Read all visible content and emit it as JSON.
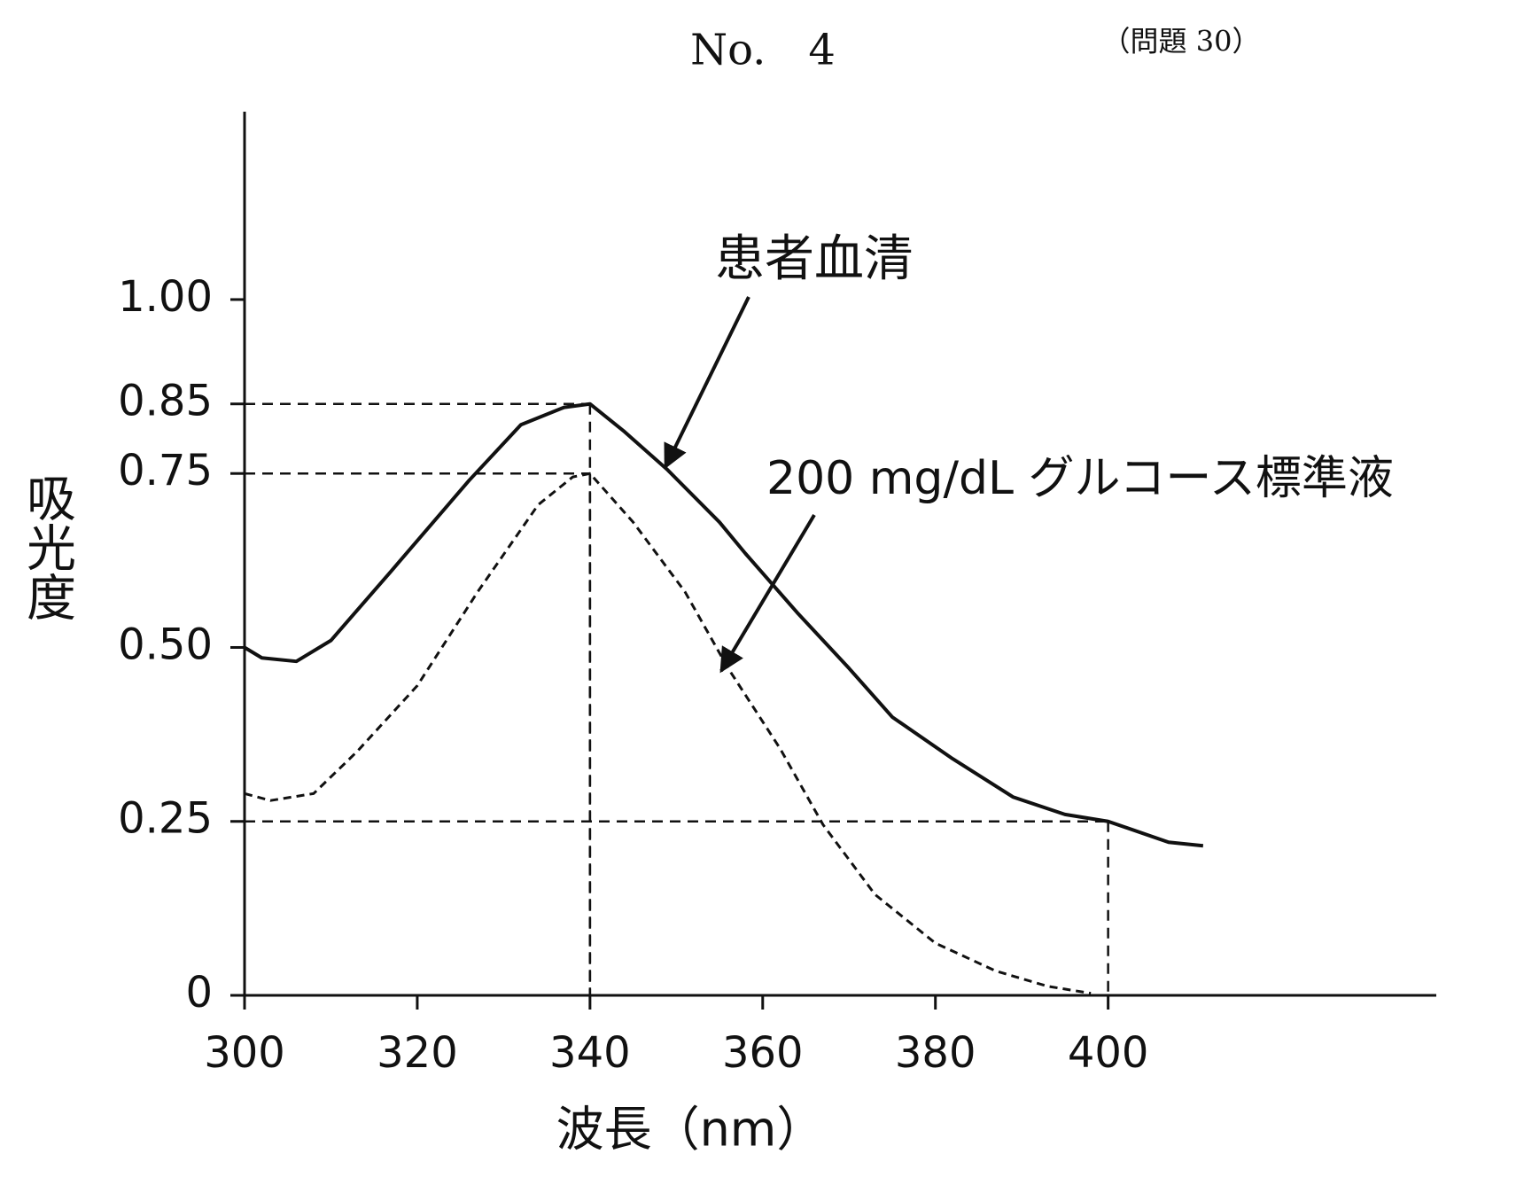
{
  "chart_data": {
    "type": "line",
    "title": "No.　4",
    "subtitle": "（問題 30）",
    "x_label": "波長（nm）",
    "y_label": "吸光度",
    "xlim": [
      300,
      438
    ],
    "ylim": [
      0,
      1.27
    ],
    "xticks": [
      300,
      320,
      340,
      360,
      380,
      400
    ],
    "yticks": [
      0,
      0.25,
      {
        "value": 0.5,
        "label": "0.50"
      },
      0.75,
      0.85,
      {
        "value": 1,
        "label": "1.00"
      }
    ],
    "series": [
      {
        "name": "患者血清",
        "color": "#111111",
        "style": "solid",
        "x": [
          300,
          302,
          306,
          310,
          317,
          326,
          332,
          337,
          340,
          344,
          349,
          355,
          358,
          364,
          370,
          375,
          382,
          389,
          395,
          400,
          407,
          411
        ],
        "values": [
          0.5,
          0.485,
          0.48,
          0.51,
          0.61,
          0.74,
          0.82,
          0.845,
          0.85,
          0.81,
          0.755,
          0.68,
          0.635,
          0.55,
          0.47,
          0.4,
          0.34,
          0.285,
          0.26,
          0.25,
          0.22,
          0.215
        ]
      },
      {
        "name": "200 mg/dL グルコース標準液",
        "color": "#111111",
        "style": "dashed",
        "x": [
          300,
          303,
          308,
          313,
          320,
          327,
          334,
          338,
          340,
          345,
          351,
          356,
          362,
          367,
          373,
          380,
          387,
          393,
          398
        ],
        "values": [
          0.29,
          0.28,
          0.29,
          0.35,
          0.445,
          0.58,
          0.705,
          0.745,
          0.75,
          0.68,
          0.58,
          0.47,
          0.355,
          0.245,
          0.145,
          0.075,
          0.035,
          0.013,
          0.003
        ]
      }
    ],
    "guides": [
      {
        "x": 340,
        "y": 0.85
      },
      {
        "x": 340,
        "y": 0.75
      },
      {
        "x": 400,
        "y": 0.25
      }
    ]
  }
}
